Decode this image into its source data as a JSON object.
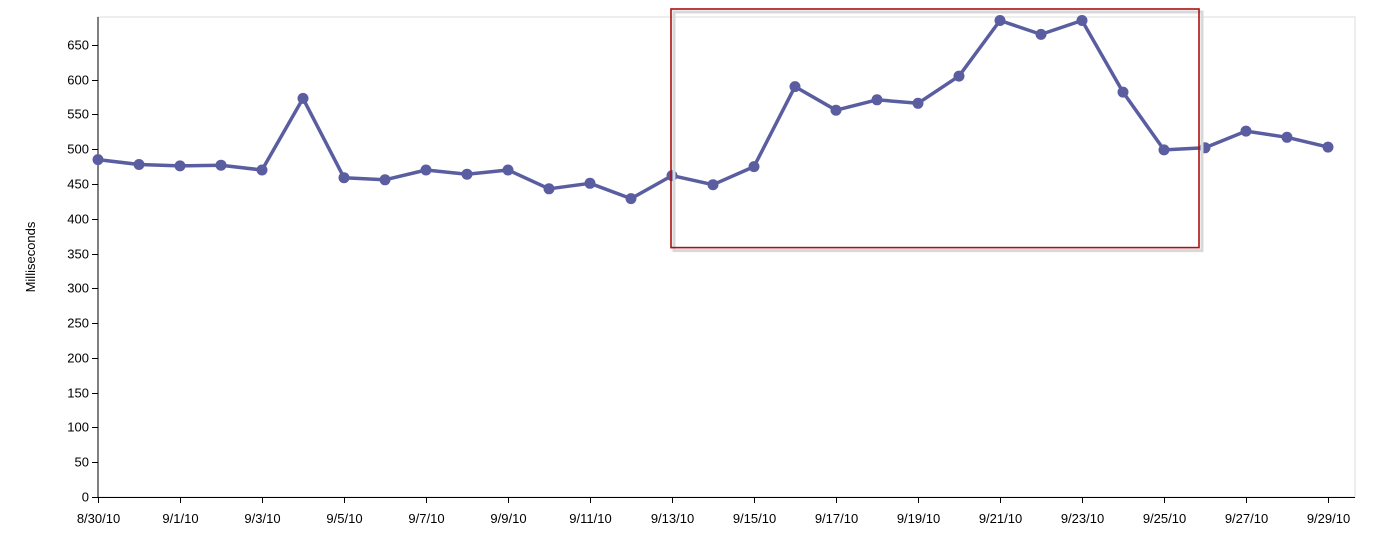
{
  "chart_data": {
    "type": "line",
    "title": "",
    "xlabel": "",
    "ylabel": "Milliseconds",
    "ylim": [
      0,
      690
    ],
    "yticks": [
      0,
      50,
      100,
      150,
      200,
      250,
      300,
      350,
      400,
      450,
      500,
      550,
      600,
      650
    ],
    "xticks": [
      "8/30/10",
      "9/1/10",
      "9/3/10",
      "9/5/10",
      "9/7/10",
      "9/9/10",
      "9/11/10",
      "9/13/10",
      "9/15/10",
      "9/17/10",
      "9/19/10",
      "9/21/10",
      "9/23/10",
      "9/25/10",
      "9/27/10",
      "9/29/10"
    ],
    "grid": false,
    "legend": "none",
    "series_color": "#5a5ea0",
    "highlight_color": "#aa1111",
    "x": [
      "8/30/10",
      "8/31/10",
      "9/1/10",
      "9/2/10",
      "9/3/10",
      "9/4/10",
      "9/5/10",
      "9/6/10",
      "9/7/10",
      "9/8/10",
      "9/9/10",
      "9/10/10",
      "9/11/10",
      "9/12/10",
      "9/13/10",
      "9/14/10",
      "9/15/10",
      "9/16/10",
      "9/17/10",
      "9/18/10",
      "9/19/10",
      "9/20/10",
      "9/21/10",
      "9/22/10",
      "9/23/10",
      "9/24/10",
      "9/25/10",
      "9/26/10",
      "9/27/10",
      "9/28/10",
      "9/29/10"
    ],
    "values": [
      485,
      478,
      476,
      477,
      470,
      573,
      459,
      456,
      470,
      464,
      470,
      443,
      451,
      429,
      462,
      449,
      475,
      590,
      556,
      571,
      566,
      605,
      685,
      665,
      685,
      582,
      499,
      502,
      526,
      517,
      503
    ],
    "highlight_range": [
      "9/13/10",
      "9/25/10"
    ],
    "highlight_value_range": [
      357,
      700
    ]
  }
}
